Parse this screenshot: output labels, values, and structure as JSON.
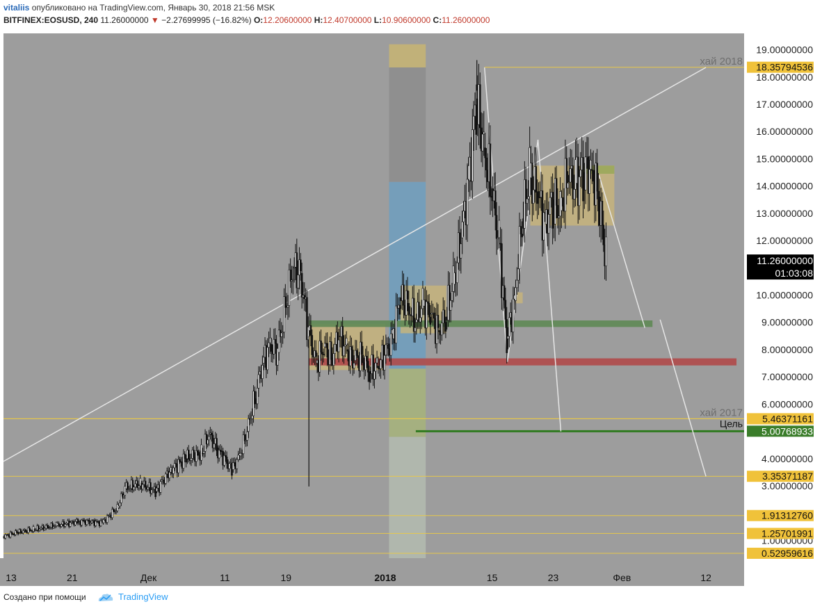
{
  "header": {
    "user": "vitaliis",
    "published_text": "опубликовано на TradingView.com, Январь 30, 2018 21:56 MSK",
    "symbol": "BITFINEX:EOSUSD, 240",
    "last_price": "11.26000000",
    "change_arrow": "▼",
    "change": "−2.27699995 (−16.82%)",
    "o_label": "O:",
    "o_value": "12.20600000",
    "h_label": "H:",
    "h_value": "12.40700000",
    "l_label": "L:",
    "l_value": "10.90600000",
    "c_label": "C:",
    "c_value": "11.26000000"
  },
  "footer": {
    "created_with": "Создано при помощи",
    "brand": "TradingView",
    "logo_icon": "tradingview-cloud-icon"
  },
  "colors": {
    "background": "#9d9d9d",
    "candle": "#111111",
    "hline": "#e8c84a",
    "price_badge": "#f0c23a",
    "current_badge": "#000000",
    "target_badge": "#3a7d2a",
    "trendline": "#e6e6e6",
    "support_zone": "#c9b57a",
    "green_band": "#5f8a55",
    "red_band": "#b04a4a",
    "blue_band": "#6f9fbf"
  },
  "chart_data": {
    "type": "candlestick",
    "symbol": "BITFINEX:EOSUSD",
    "timeframe": "240",
    "y_axis": {
      "range": [
        0.35,
        19.6
      ],
      "ticks": [
        "1.00000000",
        "2.00000000",
        "3.00000000",
        "4.00000000",
        "5.00000000",
        "6.00000000",
        "7.00000000",
        "8.00000000",
        "9.00000000",
        "10.00000000",
        "11.00000000",
        "12.00000000",
        "13.00000000",
        "14.00000000",
        "15.00000000",
        "16.00000000",
        "17.00000000",
        "18.00000000",
        "19.00000000"
      ],
      "tick_values": [
        1,
        2,
        3,
        4,
        5,
        6,
        7,
        8,
        9,
        10,
        11,
        12,
        13,
        14,
        15,
        16,
        17,
        18,
        19
      ]
    },
    "x_axis": {
      "labels": [
        "13",
        "21",
        "Дек",
        "11",
        "19",
        "2018",
        "15",
        "23",
        "Фев",
        "12"
      ],
      "label_dates": [
        "2017-11-13",
        "2017-11-21",
        "2017-12-01",
        "2017-12-11",
        "2017-12-19",
        "2018-01-01",
        "2018-01-15",
        "2018-01-23",
        "2018-02-01",
        "2018-02-12"
      ],
      "bold": [
        "2018"
      ],
      "range": [
        "2017-11-12",
        "2018-02-17"
      ]
    },
    "price_levels": [
      {
        "label": "18.35794536",
        "value": 18.35794536,
        "note": "хай 2018"
      },
      {
        "label": "5.46371161",
        "value": 5.46371161,
        "note": "хай 2017"
      },
      {
        "label": "5.46371161",
        "value": 5.46371161,
        "note": ""
      },
      {
        "label": "5.00768933",
        "value": 5.00768933,
        "note": "Цель"
      },
      {
        "label": "3.35371187",
        "value": 3.35371187,
        "note": ""
      },
      {
        "label": "1.91312760",
        "value": 1.9131276,
        "note": ""
      },
      {
        "label": "1.25701991",
        "value": 1.25701991,
        "note": ""
      },
      {
        "label": "0.52959616",
        "value": 0.52959616,
        "note": ""
      }
    ],
    "last_price": {
      "label": "11.26000000",
      "value": 11.26,
      "countdown": "01:03:08"
    },
    "annotations": {
      "high_2018": "хай 2018",
      "high_2017": "хай 2017",
      "target": "Цель"
    },
    "series": [
      {
        "date": "2017-11-12",
        "close": 1.15
      },
      {
        "date": "2017-11-14",
        "close": 1.3
      },
      {
        "date": "2017-11-16",
        "close": 1.4
      },
      {
        "date": "2017-11-19",
        "close": 1.55
      },
      {
        "date": "2017-11-22",
        "close": 1.7
      },
      {
        "date": "2017-11-25",
        "close": 1.65
      },
      {
        "date": "2017-11-27",
        "close": 2.2
      },
      {
        "date": "2017-11-28",
        "close": 2.9
      },
      {
        "date": "2017-11-30",
        "close": 3.1
      },
      {
        "date": "2017-12-02",
        "close": 2.8
      },
      {
        "date": "2017-12-04",
        "close": 3.6
      },
      {
        "date": "2017-12-06",
        "close": 4.0
      },
      {
        "date": "2017-12-08",
        "close": 4.2
      },
      {
        "date": "2017-12-09",
        "close": 4.9
      },
      {
        "date": "2017-12-10",
        "close": 4.4
      },
      {
        "date": "2017-12-12",
        "close": 3.6
      },
      {
        "date": "2017-12-13",
        "close": 4.1
      },
      {
        "date": "2017-12-14",
        "close": 5.0
      },
      {
        "date": "2017-12-15",
        "close": 6.2
      },
      {
        "date": "2017-12-16",
        "close": 7.5
      },
      {
        "date": "2017-12-17",
        "close": 8.2
      },
      {
        "date": "2017-12-18",
        "close": 7.9
      },
      {
        "date": "2017-12-19",
        "close": 9.6
      },
      {
        "date": "2017-12-20",
        "close": 11.0
      },
      {
        "date": "2017-12-21",
        "close": 10.8
      },
      {
        "date": "2017-12-22",
        "close": 8.7
      },
      {
        "date": "2017-12-23",
        "close": 7.5
      },
      {
        "date": "2017-12-24",
        "close": 8.1
      },
      {
        "date": "2017-12-25",
        "close": 7.7
      },
      {
        "date": "2017-12-26",
        "close": 8.5
      },
      {
        "date": "2017-12-27",
        "close": 8.0
      },
      {
        "date": "2017-12-28",
        "close": 7.6
      },
      {
        "date": "2017-12-29",
        "close": 7.8
      },
      {
        "date": "2017-12-30",
        "close": 7.2
      },
      {
        "date": "2017-12-31",
        "close": 7.4
      },
      {
        "date": "2018-01-01",
        "close": 7.8
      },
      {
        "date": "2018-01-02",
        "close": 8.4
      },
      {
        "date": "2018-01-03",
        "close": 9.9
      },
      {
        "date": "2018-01-04",
        "close": 9.7
      },
      {
        "date": "2018-01-05",
        "close": 9.0
      },
      {
        "date": "2018-01-06",
        "close": 9.6
      },
      {
        "date": "2018-01-07",
        "close": 9.3
      },
      {
        "date": "2018-01-08",
        "close": 8.7
      },
      {
        "date": "2018-01-09",
        "close": 9.2
      },
      {
        "date": "2018-01-10",
        "close": 10.4
      },
      {
        "date": "2018-01-11",
        "close": 12.1
      },
      {
        "date": "2018-01-12",
        "close": 14.2
      },
      {
        "date": "2018-01-13",
        "close": 17.2
      },
      {
        "date": "2018-01-14",
        "close": 15.4
      },
      {
        "date": "2018-01-15",
        "close": 13.9
      },
      {
        "date": "2018-01-16",
        "close": 11.9
      },
      {
        "date": "2018-01-17",
        "close": 8.4
      },
      {
        "date": "2018-01-18",
        "close": 9.8
      },
      {
        "date": "2018-01-19",
        "close": 12.8
      },
      {
        "date": "2018-01-20",
        "close": 14.3
      },
      {
        "date": "2018-01-21",
        "close": 13.8
      },
      {
        "date": "2018-01-22",
        "close": 12.6
      },
      {
        "date": "2018-01-23",
        "close": 13.5
      },
      {
        "date": "2018-01-24",
        "close": 13.1
      },
      {
        "date": "2018-01-25",
        "close": 14.4
      },
      {
        "date": "2018-01-26",
        "close": 14.1
      },
      {
        "date": "2018-01-27",
        "close": 14.5
      },
      {
        "date": "2018-01-28",
        "close": 14.6
      },
      {
        "date": "2018-01-29",
        "close": 13.6
      },
      {
        "date": "2018-01-30",
        "close": 11.26
      }
    ]
  }
}
